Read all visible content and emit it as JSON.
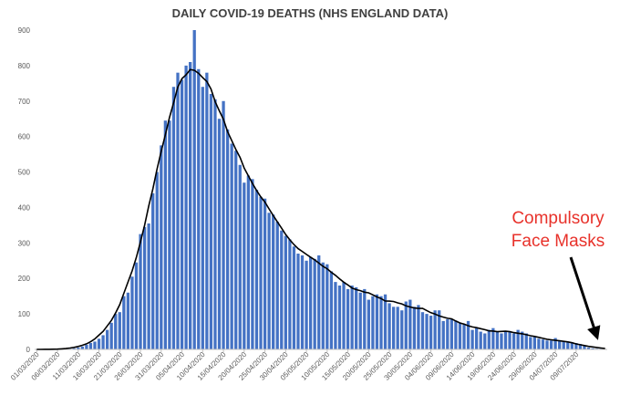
{
  "chart_data": {
    "type": "bar",
    "title": "DAILY COVID-19 DEATHS (NHS ENGLAND DATA)",
    "xlabel": "",
    "ylabel": "",
    "ylim": [
      0,
      900
    ],
    "yticks": [
      0,
      100,
      200,
      300,
      400,
      500,
      600,
      700,
      800,
      900
    ],
    "grid": false,
    "legend": "none",
    "bar_color": "#4472c4",
    "trend_color": "#000000",
    "annotation_color": "#e8322b",
    "annotation": [
      "Compulsory",
      "Face Masks"
    ],
    "x_tick_labels": [
      "01/03/2020",
      "06/03/2020",
      "11/03/2020",
      "16/03/2020",
      "21/03/2020",
      "26/03/2020",
      "31/03/2020",
      "05/04/2020",
      "10/04/2020",
      "15/04/2020",
      "20/04/2020",
      "25/04/2020",
      "30/04/2020",
      "05/05/2020",
      "10/05/2020",
      "15/05/2020",
      "20/05/2020",
      "25/05/2020",
      "30/05/2020",
      "04/06/2020",
      "09/06/2020",
      "14/06/2020",
      "19/06/2020",
      "24/06/2020",
      "29/06/2020",
      "04/07/2020",
      "09/07/2020"
    ],
    "start_label": "01/03/2020",
    "series": [
      {
        "values": [
          0,
          0,
          0,
          0,
          0,
          0,
          1,
          2,
          2,
          3,
          5,
          8,
          13,
          18,
          22,
          30,
          40,
          55,
          75,
          100,
          105,
          150,
          160,
          205,
          245,
          325,
          345,
          355,
          440,
          500,
          575,
          645,
          645,
          740,
          780,
          760,
          800,
          810,
          900,
          790,
          740,
          780,
          720,
          705,
          650,
          700,
          620,
          580,
          560,
          520,
          470,
          490,
          480,
          450,
          430,
          425,
          385,
          380,
          360,
          335,
          320,
          310,
          290,
          270,
          265,
          250,
          260,
          255,
          265,
          245,
          240,
          220,
          190,
          180,
          190,
          170,
          180,
          175,
          160,
          170,
          140,
          150,
          155,
          150,
          155,
          130,
          120,
          120,
          110,
          135,
          140,
          120,
          125,
          105,
          100,
          95,
          110,
          110,
          80,
          85,
          85,
          80,
          75,
          70,
          80,
          55,
          60,
          50,
          45,
          55,
          60,
          50,
          45,
          50,
          50,
          45,
          55,
          50,
          45,
          35,
          35,
          30,
          28,
          25,
          25,
          32,
          25,
          22,
          22,
          20,
          18,
          15,
          10,
          5,
          3,
          2,
          2,
          1
        ]
      }
    ]
  }
}
